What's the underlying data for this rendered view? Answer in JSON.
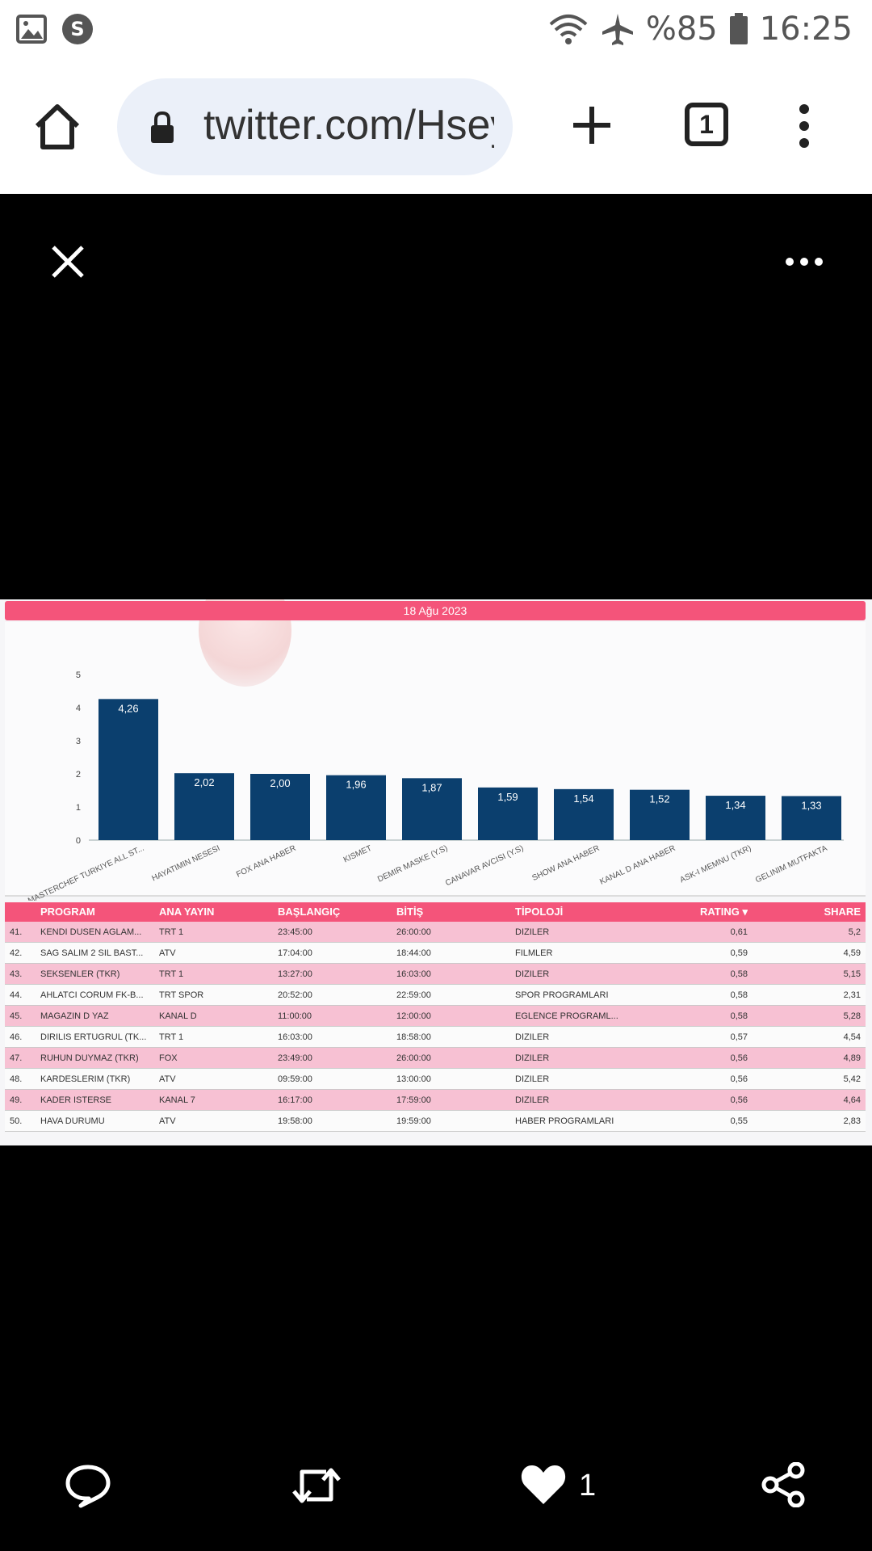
{
  "status_bar": {
    "battery": "%85",
    "time": "16:25",
    "icons": [
      "image-icon",
      "s-app-icon",
      "wifi-icon",
      "airplane-icon",
      "battery-icon"
    ]
  },
  "browser": {
    "url": "twitter.com/Hsey",
    "tab_count": "1"
  },
  "viewer": {
    "like_count": "1"
  },
  "date_banner": "18 Ağu 2023",
  "chart_data": {
    "type": "bar",
    "categories": [
      "MASTERCHEF TURKIYE ALL ST...",
      "HAYATIMIN NESESI",
      "FOX ANA HABER",
      "KISMET",
      "DEMIR MASKE (Y.S)",
      "CANAVAR AVCISI (Y.S)",
      "SHOW ANA HABER",
      "KANAL D ANA HABER",
      "ASK-I MEMNU (TKR)",
      "GELINIM MUTFAKTA"
    ],
    "values": [
      4.26,
      2.02,
      2.0,
      1.96,
      1.87,
      1.59,
      1.54,
      1.52,
      1.34,
      1.33
    ],
    "value_labels": [
      "4,26",
      "2,02",
      "2,00",
      "1,96",
      "1,87",
      "1,59",
      "1,54",
      "1,52",
      "1,34",
      "1,33"
    ],
    "y_ticks": [
      "0",
      "1",
      "2",
      "3",
      "4",
      "5"
    ],
    "ylim": [
      0,
      5
    ],
    "color": "#0b3f6e"
  },
  "table": {
    "headers": {
      "program": "PROGRAM",
      "ana_yayin": "ANA YAYIN",
      "baslangic": "BAŞLANGIÇ",
      "bitis": "BİTİŞ",
      "tipoloji": "TİPOLOJİ",
      "rating": "RATING ▾",
      "share": "SHARE"
    },
    "rows": [
      {
        "idx": "41.",
        "program": "KENDI DUSEN AGLAM...",
        "ana": "TRT 1",
        "bas": "23:45:00",
        "bit": "26:00:00",
        "tip": "DIZILER",
        "rating": "0,61",
        "share": "5,2"
      },
      {
        "idx": "42.",
        "program": "SAG SALIM 2 SIL BAST...",
        "ana": "ATV",
        "bas": "17:04:00",
        "bit": "18:44:00",
        "tip": "FILMLER",
        "rating": "0,59",
        "share": "4,59"
      },
      {
        "idx": "43.",
        "program": "SEKSENLER (TKR)",
        "ana": "TRT 1",
        "bas": "13:27:00",
        "bit": "16:03:00",
        "tip": "DIZILER",
        "rating": "0,58",
        "share": "5,15"
      },
      {
        "idx": "44.",
        "program": "AHLATCI CORUM FK-B...",
        "ana": "TRT SPOR",
        "bas": "20:52:00",
        "bit": "22:59:00",
        "tip": "SPOR PROGRAMLARI",
        "rating": "0,58",
        "share": "2,31"
      },
      {
        "idx": "45.",
        "program": "MAGAZIN D YAZ",
        "ana": "KANAL D",
        "bas": "11:00:00",
        "bit": "12:00:00",
        "tip": "EGLENCE PROGRAML...",
        "rating": "0,58",
        "share": "5,28"
      },
      {
        "idx": "46.",
        "program": "DIRILIS ERTUGRUL (TK...",
        "ana": "TRT 1",
        "bas": "16:03:00",
        "bit": "18:58:00",
        "tip": "DIZILER",
        "rating": "0,57",
        "share": "4,54"
      },
      {
        "idx": "47.",
        "program": "RUHUN DUYMAZ (TKR)",
        "ana": "FOX",
        "bas": "23:49:00",
        "bit": "26:00:00",
        "tip": "DIZILER",
        "rating": "0,56",
        "share": "4,89"
      },
      {
        "idx": "48.",
        "program": "KARDESLERIM (TKR)",
        "ana": "ATV",
        "bas": "09:59:00",
        "bit": "13:00:00",
        "tip": "DIZILER",
        "rating": "0,56",
        "share": "5,42"
      },
      {
        "idx": "49.",
        "program": "KADER ISTERSE",
        "ana": "KANAL 7",
        "bas": "16:17:00",
        "bit": "17:59:00",
        "tip": "DIZILER",
        "rating": "0,56",
        "share": "4,64"
      },
      {
        "idx": "50.",
        "program": "HAVA DURUMU",
        "ana": "ATV",
        "bas": "19:58:00",
        "bit": "19:59:00",
        "tip": "HABER PROGRAMLARI",
        "rating": "0,55",
        "share": "2,83"
      }
    ]
  }
}
